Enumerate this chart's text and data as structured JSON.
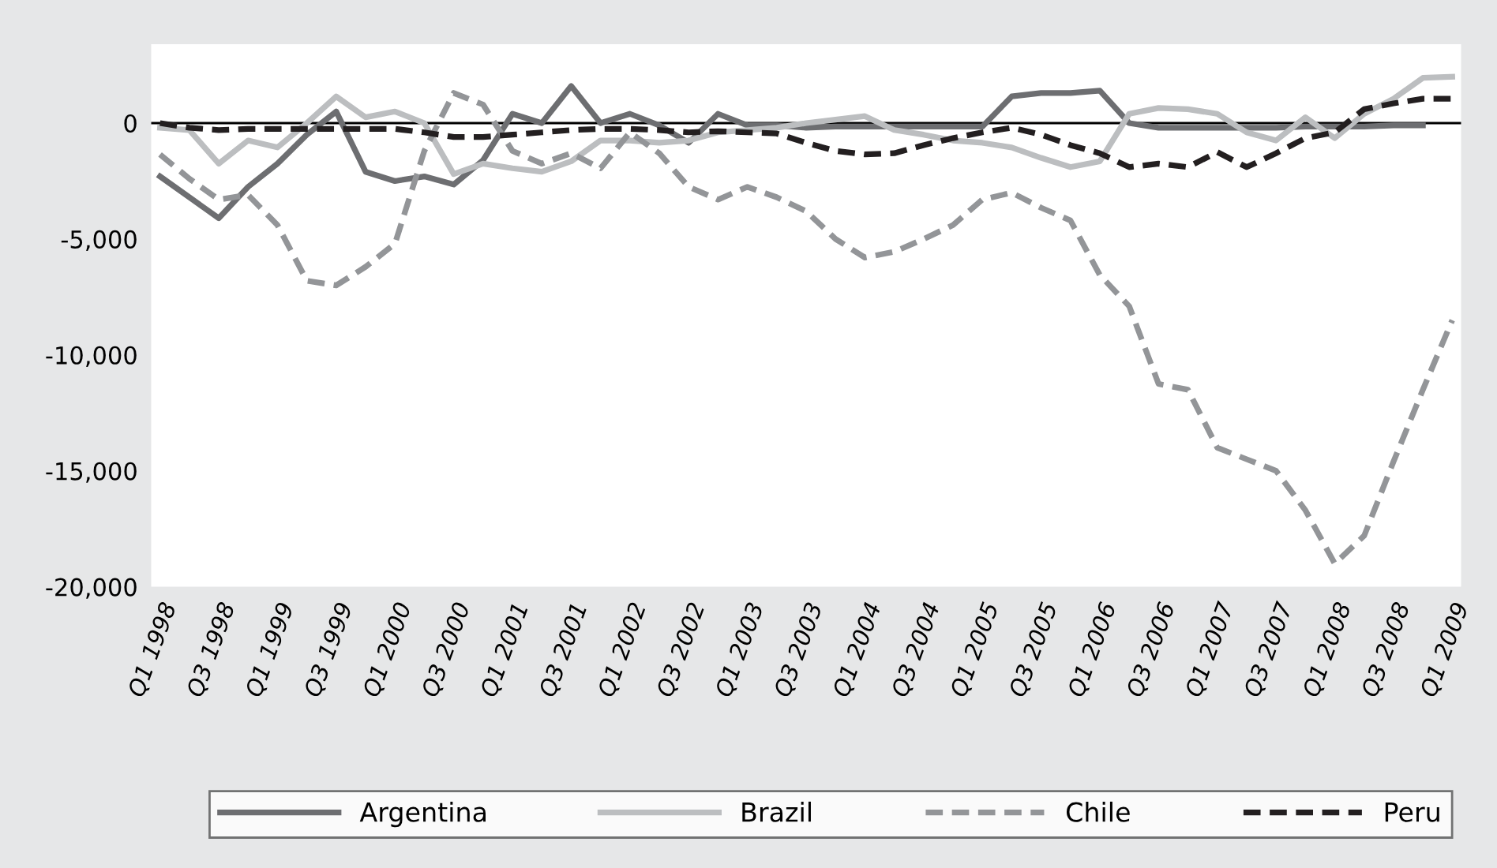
{
  "chart_data": {
    "type": "line",
    "categories": [
      "Q1 1998",
      null,
      "Q3 1998",
      null,
      "Q1 1999",
      null,
      "Q3 1999",
      null,
      "Q1 2000",
      null,
      "Q3 2000",
      null,
      "Q1 2001",
      null,
      "Q3 2001",
      null,
      "Q1 2002",
      null,
      "Q3 2002",
      null,
      "Q1 2003",
      null,
      "Q3 2003",
      null,
      "Q1 2004",
      null,
      "Q3 2004",
      null,
      "Q1 2005",
      null,
      "Q3 2005",
      null,
      "Q1 2006",
      null,
      "Q3 2006",
      null,
      "Q1 2007",
      null,
      "Q3 2007",
      null,
      "Q1 2008",
      null,
      "Q3 2008",
      null,
      "Q1 2009"
    ],
    "series": [
      {
        "name": "Argentina",
        "color": "#6d6e71",
        "line_style": "solid",
        "values": [
          -2300,
          -3200,
          -4100,
          -2750,
          -1750,
          -500,
          500,
          -2100,
          -2500,
          -2300,
          -2650,
          -1600,
          400,
          0,
          1600,
          0,
          400,
          -100,
          -850,
          400,
          -100,
          -100,
          -200,
          -150,
          -150,
          -150,
          -150,
          -150,
          -150,
          1150,
          1300,
          1300,
          1400,
          0,
          -200,
          -200,
          -200,
          -200,
          -200,
          -150,
          -150,
          -150,
          -100,
          -100,
          null
        ]
      },
      {
        "name": "Brazil",
        "color": "#bcbec0",
        "line_style": "solid",
        "values": [
          -200,
          -300,
          -1750,
          -750,
          -1050,
          0,
          1150,
          250,
          500,
          0,
          -2200,
          -1750,
          -1950,
          -2100,
          -1650,
          -750,
          -750,
          -850,
          -750,
          -400,
          -300,
          -200,
          0,
          150,
          300,
          -300,
          -500,
          -750,
          -850,
          -1050,
          -1500,
          -1900,
          -1650,
          400,
          650,
          600,
          400,
          -400,
          -750,
          250,
          -650,
          400,
          1050,
          1950,
          2000
        ]
      },
      {
        "name": "Chile",
        "color": "#939598",
        "line_style": "dashed",
        "values": [
          -1350,
          -2400,
          -3300,
          -3100,
          -4400,
          -6800,
          -7000,
          -6200,
          -5200,
          -1200,
          1300,
          800,
          -1200,
          -1750,
          -1300,
          -1950,
          -400,
          -1300,
          -2750,
          -3300,
          -2750,
          -3200,
          -3800,
          -5000,
          -5800,
          -5550,
          -5000,
          -4400,
          -3300,
          -3000,
          -3650,
          -4200,
          -6550,
          -7900,
          -11250,
          -11500,
          -14000,
          -14500,
          -15000,
          -16700,
          -19000,
          -17800,
          -14600,
          -11500,
          -8500
        ]
      },
      {
        "name": "Peru",
        "color": "#231f20",
        "line_style": "dashed",
        "values": [
          0,
          -200,
          -300,
          -250,
          -250,
          -250,
          -250,
          -250,
          -250,
          -400,
          -600,
          -600,
          -500,
          -400,
          -300,
          -250,
          -250,
          -300,
          -400,
          -350,
          -400,
          -450,
          -850,
          -1200,
          -1350,
          -1300,
          -950,
          -650,
          -400,
          -200,
          -500,
          -950,
          -1300,
          -1900,
          -1750,
          -1900,
          -1250,
          -1900,
          -1300,
          -650,
          -400,
          600,
          850,
          1050,
          1050
        ]
      }
    ],
    "ylim": [
      -20000,
      3400
    ],
    "yticks": [
      {
        "value": -20000,
        "label": "-20,000"
      },
      {
        "value": -15000,
        "label": "-15,000"
      },
      {
        "value": -10000,
        "label": "-10,000"
      },
      {
        "value": -5000,
        "label": "-5,000"
      },
      0
    ],
    "ref_lines": [
      {
        "axis": "y",
        "value": 0,
        "label": null,
        "color": "#000000",
        "line_style": "solid"
      }
    ],
    "grid": false,
    "legend": "bottom",
    "marker": "none"
  }
}
